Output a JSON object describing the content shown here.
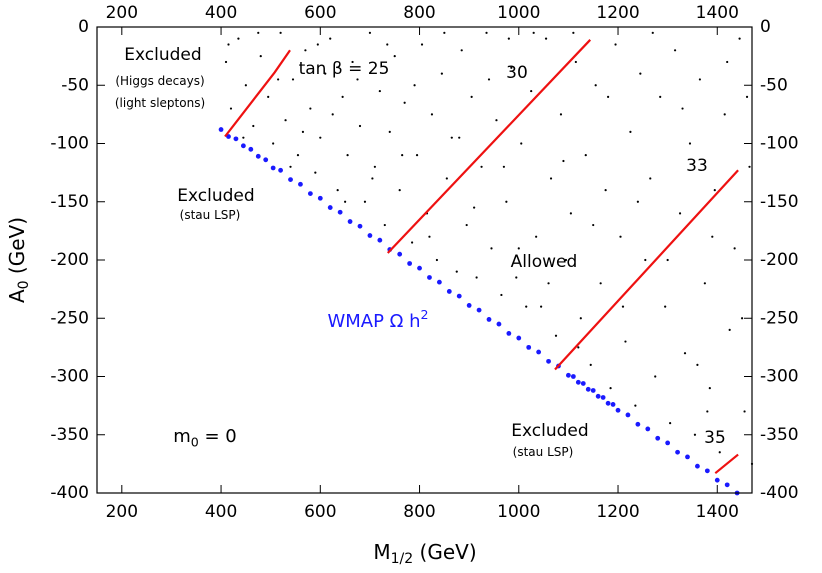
{
  "chart_data": {
    "type": "scatter",
    "xlabel": {
      "text": "M",
      "sub": "1/2",
      "rest": " (GeV)"
    },
    "ylabel": {
      "text": "A",
      "sub": "0",
      "rest": " (GeV)"
    },
    "xlim": [
      150,
      1470
    ],
    "ylim": [
      -400,
      0
    ],
    "xticks": [
      200,
      400,
      600,
      800,
      1000,
      1200,
      1400
    ],
    "yticks": [
      0,
      -50,
      -100,
      -150,
      -200,
      -250,
      -300,
      -350,
      -400
    ],
    "series": [
      {
        "color": "#000000",
        "x": [
          410,
          420,
          435,
          450,
          465,
          480,
          495,
          505,
          520,
          530,
          545,
          555,
          570,
          580,
          590,
          600,
          610,
          620,
          635,
          645,
          655,
          665,
          680,
          690,
          700,
          710,
          720,
          730,
          740,
          750,
          760,
          770,
          785,
          795,
          805,
          815,
          825,
          835,
          845,
          855,
          865,
          875,
          885,
          895,
          905,
          915,
          925,
          935,
          945,
          955,
          965,
          975,
          985,
          995,
          1005,
          1015,
          1025,
          1035,
          1045,
          1055,
          1065,
          1075,
          1085,
          1095,
          1105,
          1115,
          1125,
          1135,
          1145,
          1155,
          1165,
          1175,
          1185,
          1195,
          1205,
          1215,
          1225,
          1235,
          1245,
          1255,
          1265,
          1275,
          1285,
          1295,
          1305,
          1315,
          1325,
          1335,
          1345,
          1355,
          1365,
          1375,
          1385,
          1395,
          1405,
          1415,
          1425,
          1435,
          1445,
          1455,
          1465,
          1470,
          415,
          445,
          475,
          515,
          540,
          565,
          595,
          625,
          650,
          675,
          705,
          735,
          765,
          790,
          820,
          850,
          880,
          910,
          940,
          970,
          1000,
          1030,
          1060,
          1090,
          1120,
          1150,
          1180,
          1210,
          1240,
          1270,
          1300,
          1330,
          1360,
          1390,
          1420,
          1450,
          1460,
          1110,
          980,
          1380
        ],
        "y": [
          -30,
          -70,
          -10,
          -50,
          -85,
          -25,
          -60,
          -100,
          -5,
          -80,
          -45,
          -110,
          -20,
          -70,
          -125,
          -95,
          -40,
          -10,
          -140,
          -60,
          -110,
          -30,
          -85,
          -150,
          -5,
          -120,
          -55,
          -170,
          -90,
          -25,
          -140,
          -65,
          -185,
          -110,
          -15,
          -160,
          -75,
          -200,
          -40,
          -130,
          -95,
          -210,
          -20,
          -170,
          -60,
          -215,
          -120,
          -5,
          -190,
          -80,
          -230,
          -150,
          -35,
          -215,
          -100,
          -240,
          -55,
          -180,
          -240,
          -10,
          -130,
          -265,
          -75,
          -200,
          -160,
          -30,
          -250,
          -110,
          -290,
          -50,
          -220,
          -140,
          -310,
          -15,
          -180,
          -270,
          -90,
          -325,
          -40,
          -200,
          -130,
          -300,
          -60,
          -240,
          -340,
          -20,
          -160,
          -280,
          -100,
          -350,
          -45,
          -220,
          -310,
          -140,
          -365,
          -75,
          -260,
          -190,
          -10,
          -330,
          -120,
          -375,
          -15,
          -95,
          -5,
          -45,
          -120,
          -90,
          -15,
          -75,
          -150,
          -45,
          -130,
          -15,
          -110,
          -50,
          -180,
          -5,
          -95,
          -155,
          -45,
          -120,
          -190,
          -5,
          -220,
          -115,
          -275,
          -170,
          -60,
          -240,
          -150,
          -5,
          -200,
          -70,
          -290,
          -180,
          -30,
          -250,
          -60,
          -5,
          -10,
          -330
        ]
      },
      {
        "color": "#1a1aff",
        "x": [
          400,
          415,
          430,
          445,
          460,
          475,
          490,
          505,
          520,
          540,
          560,
          580,
          600,
          620,
          640,
          660,
          680,
          700,
          720,
          740,
          760,
          780,
          800,
          820,
          840,
          860,
          880,
          900,
          920,
          940,
          960,
          980,
          1000,
          1020,
          1040,
          1060,
          1080,
          1100,
          1110,
          1120,
          1130,
          1140,
          1150,
          1160,
          1170,
          1180,
          1190,
          1200,
          1220,
          1240,
          1260,
          1280,
          1300,
          1320,
          1340,
          1360,
          1380,
          1400,
          1420,
          1440
        ],
        "y": [
          -88,
          -94,
          -96,
          -102,
          -105,
          -111,
          -114,
          -121,
          -123,
          -131,
          -135,
          -143,
          -147,
          -155,
          -159,
          -167,
          -171,
          -179,
          -183,
          -191,
          -195,
          -203,
          -207,
          -215,
          -219,
          -227,
          -231,
          -239,
          -243,
          -251,
          -255,
          -263,
          -267,
          -275,
          -279,
          -287,
          -291,
          -299,
          -300,
          -305,
          -306,
          -311,
          -312,
          -317,
          -318,
          -323,
          -324,
          -329,
          -333,
          -341,
          -345,
          -353,
          -357,
          -365,
          -369,
          -377,
          -381,
          -389,
          -393,
          -400
        ]
      }
    ],
    "lines": [
      {
        "color": "#ee1111",
        "x": [
          408,
          508,
          539
        ],
        "y": [
          -94,
          -39,
          -20
        ]
      },
      {
        "color": "#ee1111",
        "x": [
          736,
          1144
        ],
        "y": [
          -194,
          -11
        ]
      },
      {
        "color": "#ee1111",
        "x": [
          1073,
          1442
        ],
        "y": [
          -294,
          -123
        ]
      },
      {
        "color": "#ee1111",
        "x": [
          1396,
          1442
        ],
        "y": [
          -383,
          -367
        ]
      }
    ],
    "annotations": [
      {
        "text": "Excluded"
      },
      {
        "text": "(Higgs decays)"
      },
      {
        "text": "(light sleptons)"
      },
      {
        "text": "tan β = 25"
      },
      {
        "text": "30"
      },
      {
        "text": "33"
      },
      {
        "text": "Excluded"
      },
      {
        "text": "(stau LSP)"
      },
      {
        "text": "Allowed"
      },
      {
        "text": "WMAP Ω h",
        "sup": "2"
      },
      {
        "text": "m",
        "sub": "0",
        "rest": " = 0"
      },
      {
        "text": "Excluded"
      },
      {
        "text": "(stau LSP)"
      },
      {
        "text": "35"
      }
    ]
  }
}
